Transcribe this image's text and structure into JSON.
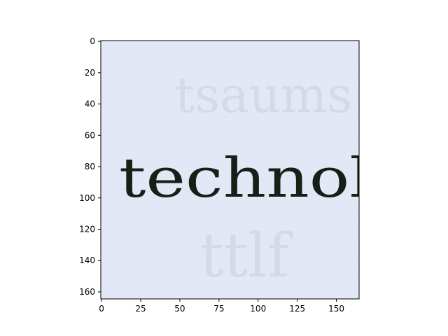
{
  "chart_data": {
    "type": "image",
    "title": "",
    "xlabel": "",
    "ylabel": "",
    "xlim": [
      -0.5,
      164.5
    ],
    "ylim": [
      164.5,
      -0.5
    ],
    "x_ticks": [
      0,
      25,
      50,
      75,
      100,
      125,
      150
    ],
    "y_ticks": [
      0,
      20,
      40,
      60,
      80,
      100,
      120,
      140,
      160
    ],
    "grid": false,
    "image": {
      "content": "scanned printed word on light paper",
      "text": "technol",
      "background_color": "#e3e9f7",
      "text_color": "#152017"
    }
  }
}
